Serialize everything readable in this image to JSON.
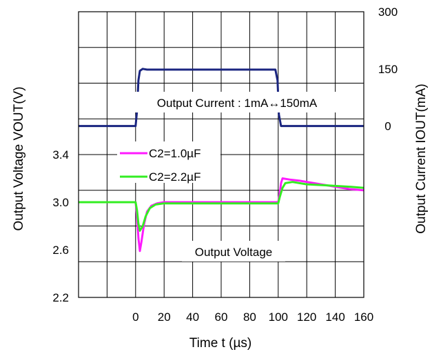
{
  "chart_data": {
    "type": "line",
    "xlabel": "Time t (µs)",
    "ylabel_left": "Output Voltage VOUT(V)",
    "ylabel_right": "Output Current IOUT(mA)",
    "x_ticks": [
      "0",
      "20",
      "40",
      "60",
      "80",
      "100",
      "120",
      "140",
      "160"
    ],
    "xlim": [
      -40,
      160
    ],
    "voltage_axis": {
      "ticks": [
        "2.2",
        "2.6",
        "3.0",
        "3.4"
      ],
      "tick_values": [
        2.2,
        2.6,
        3.0,
        3.4
      ],
      "ylim": [
        2.2,
        4.6
      ]
    },
    "current_axis": {
      "ticks": [
        "0",
        "150",
        "300"
      ],
      "tick_values": [
        0,
        150,
        300
      ],
      "ylim": [
        -450,
        300
      ]
    },
    "grid": true,
    "annotations": {
      "current_label": "Output Current : 1mA↔150mA",
      "voltage_label": "Output Voltage"
    },
    "legend_position": "center-left",
    "series": [
      {
        "name": "Output Current",
        "axis": "current",
        "color": "#1a2580",
        "points": [
          [
            -40,
            0
          ],
          [
            0,
            0
          ],
          [
            1,
            40
          ],
          [
            2,
            120
          ],
          [
            3,
            145
          ],
          [
            5,
            150
          ],
          [
            8,
            148
          ],
          [
            98,
            148
          ],
          [
            99.5,
            120
          ],
          [
            100.5,
            30
          ],
          [
            102,
            0
          ],
          [
            160,
            0
          ]
        ]
      },
      {
        "name": "C2=1.0µF",
        "axis": "voltage",
        "color": "#ff1aff",
        "points": [
          [
            -40,
            3.0
          ],
          [
            0,
            3.0
          ],
          [
            1,
            2.88
          ],
          [
            2,
            2.7
          ],
          [
            3,
            2.59
          ],
          [
            4,
            2.66
          ],
          [
            6,
            2.82
          ],
          [
            8,
            2.92
          ],
          [
            11,
            2.97
          ],
          [
            15,
            2.99
          ],
          [
            20,
            3.0
          ],
          [
            30,
            3.0
          ],
          [
            100,
            3.0
          ],
          [
            101,
            3.07
          ],
          [
            102,
            3.16
          ],
          [
            103,
            3.2
          ],
          [
            108,
            3.19
          ],
          [
            115,
            3.18
          ],
          [
            125,
            3.16
          ],
          [
            140,
            3.13
          ],
          [
            150,
            3.11
          ],
          [
            160,
            3.1
          ]
        ]
      },
      {
        "name": "C2=2.2µF",
        "axis": "voltage",
        "color": "#33ee22",
        "points": [
          [
            -40,
            3.0
          ],
          [
            0,
            3.0
          ],
          [
            1,
            2.93
          ],
          [
            2,
            2.82
          ],
          [
            3,
            2.76
          ],
          [
            5,
            2.8
          ],
          [
            7,
            2.88
          ],
          [
            10,
            2.95
          ],
          [
            14,
            2.98
          ],
          [
            20,
            2.99
          ],
          [
            30,
            2.99
          ],
          [
            100,
            2.99
          ],
          [
            101,
            3.04
          ],
          [
            103,
            3.12
          ],
          [
            105,
            3.16
          ],
          [
            110,
            3.17
          ],
          [
            120,
            3.15
          ],
          [
            135,
            3.14
          ],
          [
            150,
            3.13
          ],
          [
            160,
            3.12
          ]
        ]
      }
    ]
  }
}
